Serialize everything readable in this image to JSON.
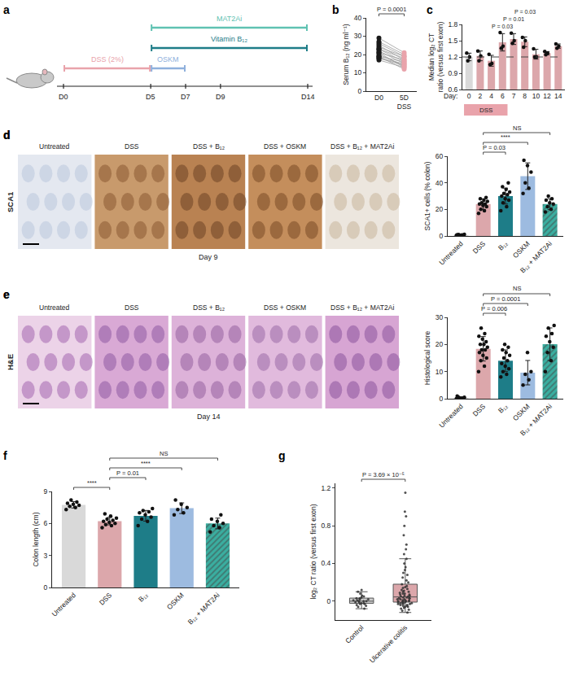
{
  "timeline": {
    "panel": "a",
    "days": [
      {
        "day": 0,
        "label": "D0"
      },
      {
        "day": 5,
        "label": "D5"
      },
      {
        "day": 7,
        "label": "D7"
      },
      {
        "day": 9,
        "label": "D9"
      },
      {
        "day": 14,
        "label": "D14"
      }
    ],
    "treatments": [
      {
        "label": "DSS (2%)",
        "from": 0,
        "to": 5,
        "color": "#e9a3ab"
      },
      {
        "label": "OSKM",
        "from": 5,
        "to": 7,
        "color": "#8fb0dc"
      },
      {
        "label": "Vitamin B₁₂",
        "from": 5,
        "to": 14,
        "color": "#1e7d88"
      },
      {
        "label": "MAT2Ai",
        "from": 5,
        "to": 14,
        "color": "#5fc2b2"
      }
    ]
  },
  "image_panels": [
    {
      "panel": "d",
      "stain": "SCA1",
      "day": "Day 9",
      "columns": [
        "Untreated",
        "DSS",
        "DSS + B₁₂",
        "DSS + OSKM",
        "DSS + B₁₂ + MAT2Ai"
      ]
    },
    {
      "panel": "e",
      "stain": "H&E",
      "day": "Day 14",
      "columns": [
        "Untreated",
        "DSS",
        "DSS + B₁₂",
        "DSS + OSKM",
        "DSS + B₁₂ + MAT2Ai"
      ]
    }
  ],
  "chart_data": [
    {
      "panel": "b",
      "type": "paired",
      "categories": [
        "D0",
        "5D\nDSS"
      ],
      "colors": [
        "#1a1a1a",
        "#e9a3ab"
      ],
      "y_label": "Serum B₁₂ (ng ml⁻¹)",
      "ylim": [
        0,
        40
      ],
      "yticks": [
        0,
        10,
        20,
        30,
        40
      ],
      "pairs": [
        [
          29,
          21
        ],
        [
          27,
          20
        ],
        [
          26,
          19
        ],
        [
          25,
          17
        ],
        [
          24,
          19
        ],
        [
          23,
          16
        ],
        [
          23,
          18
        ],
        [
          22,
          15
        ],
        [
          21,
          13
        ],
        [
          21,
          17
        ],
        [
          20,
          14
        ],
        [
          19,
          16
        ],
        [
          19,
          12
        ],
        [
          18,
          15
        ],
        [
          18,
          14
        ],
        [
          17,
          13
        ]
      ],
      "comparisons": [
        {
          "from": "D0",
          "to": "5D\nDSS",
          "label": "P = 0.0001"
        }
      ]
    },
    {
      "panel": "c",
      "type": "bar",
      "categories": [
        "0",
        "2",
        "4",
        "6",
        "7",
        "8",
        "10",
        "12",
        "14"
      ],
      "x_label": "Day:",
      "y_label": "Median log₂ CT\nratio (versus first exon)",
      "values": [
        1.2,
        1.22,
        1.13,
        1.47,
        1.53,
        1.48,
        1.25,
        1.27,
        1.4
      ],
      "errors": [
        0.07,
        0.09,
        0.1,
        0.16,
        0.1,
        0.09,
        0.09,
        0.03,
        0.04
      ],
      "points": [
        [
          1.27,
          1.2,
          1.13
        ],
        [
          1.31,
          1.22,
          1.13
        ],
        [
          1.25,
          1.08,
          1.06
        ],
        [
          1.65,
          1.4,
          1.36
        ],
        [
          1.64,
          1.5,
          1.45
        ],
        [
          1.56,
          1.5,
          1.38
        ],
        [
          1.35,
          1.2,
          1.2
        ],
        [
          1.3,
          1.27,
          1.24
        ],
        [
          1.44,
          1.4,
          1.36
        ]
      ],
      "colors": [
        "#d9d9d9",
        "#dca7ab",
        "#dca7ab",
        "#dca7ab",
        "#dca7ab",
        "#dca7ab",
        "#dca7ab",
        "#dca7ab",
        "#dca7ab"
      ],
      "ylim": [
        0.6,
        1.8
      ],
      "yticks": [
        0.6,
        0.9,
        1.2,
        1.5,
        1.8
      ],
      "reference_line": 1.2,
      "period": {
        "label": "DSS",
        "from": "0",
        "to": "6",
        "color": "#e9a3ab"
      },
      "bar_labels": [
        {
          "category": "6",
          "label": "P = 0.03"
        },
        {
          "category": "7",
          "label": "P = 0.01"
        },
        {
          "category": "8",
          "label": "P = 0.03"
        }
      ]
    },
    {
      "panel": "d",
      "type": "bar",
      "categories": [
        "Untreated",
        "DSS",
        "B₁₂",
        "OSKM",
        "B₁₂ + MAT2Ai"
      ],
      "y_label": "SCA1+ cells (% colon)",
      "values": [
        0.8,
        24,
        30,
        45,
        24
      ],
      "errors": [
        0.3,
        4,
        6,
        10,
        4
      ],
      "points": [
        [
          0.5,
          0.8,
          1.0,
          1.2,
          0.6,
          0.9
        ],
        [
          17,
          19,
          20,
          22,
          23,
          24,
          24,
          25,
          26,
          27,
          28,
          29
        ],
        [
          19,
          22,
          25,
          27,
          28,
          30,
          31,
          32,
          33,
          35,
          37,
          40
        ],
        [
          32,
          36,
          40,
          48,
          53,
          57
        ],
        [
          18,
          20,
          22,
          24,
          25,
          27,
          28,
          30
        ]
      ],
      "colors": [
        "#d9d9d9",
        "#dca7ab",
        "#1e7d88",
        "#9dbbe0",
        "#3aaea0"
      ],
      "ylim": [
        0,
        60
      ],
      "yticks": [
        0,
        20,
        40,
        60
      ],
      "comparisons": [
        {
          "from": "DSS",
          "to": "B₁₂",
          "label": "P = 0.03"
        },
        {
          "from": "DSS",
          "to": "OSKM",
          "label": "****"
        },
        {
          "from": "DSS",
          "to": "B₁₂ + MAT2Ai",
          "label": "NS"
        }
      ]
    },
    {
      "panel": "e",
      "type": "bar",
      "categories": [
        "Untreated",
        "DSS",
        "B₁₂",
        "OSKM",
        "B₁₂ + MAT2Ai"
      ],
      "y_label": "Histological score",
      "values": [
        0.33,
        18.4,
        14,
        9.6,
        20.1
      ],
      "errors": [
        0.4,
        4.5,
        4,
        4.5,
        6
      ],
      "points": [
        [
          0,
          0,
          0.5,
          0.5,
          0,
          1
        ],
        [
          10,
          12,
          14,
          15,
          16,
          17,
          18,
          18,
          19,
          20,
          20,
          21,
          22,
          23,
          24,
          26
        ],
        [
          8,
          9,
          10,
          11,
          12,
          13,
          14,
          15,
          16,
          17,
          18,
          19,
          20
        ],
        [
          5,
          7,
          9,
          10,
          17
        ],
        [
          10,
          14,
          17,
          19,
          21,
          23,
          24,
          26,
          27
        ]
      ],
      "colors": [
        "#d9d9d9",
        "#dca7ab",
        "#1e7d88",
        "#9dbbe0",
        "#3aaea0"
      ],
      "ylim": [
        0,
        30
      ],
      "yticks": [
        0,
        10,
        20,
        30
      ],
      "comparisons": [
        {
          "from": "DSS",
          "to": "B₁₂",
          "label": "P = 0.006"
        },
        {
          "from": "DSS",
          "to": "OSKM",
          "label": "P = 0.0001"
        },
        {
          "from": "DSS",
          "to": "B₁₂ + MAT2Ai",
          "label": "NS"
        }
      ]
    },
    {
      "panel": "f",
      "type": "bar",
      "categories": [
        "Untreated",
        "DSS",
        "B₁₂",
        "OSKM",
        "B₁₂ + MAT2Ai"
      ],
      "y_label": "Colon length (cm)",
      "values": [
        7.75,
        6.22,
        6.72,
        7.43,
        6.0
      ],
      "errors": [
        0.3,
        0.35,
        0.5,
        0.5,
        0.5
      ],
      "points": [
        [
          7.3,
          7.5,
          7.6,
          7.7,
          7.8,
          7.9,
          8.0,
          8.2
        ],
        [
          5.6,
          5.8,
          5.9,
          6.0,
          6.1,
          6.2,
          6.3,
          6.4,
          6.5,
          6.7,
          6.9
        ],
        [
          5.8,
          6.2,
          6.4,
          6.6,
          6.8,
          7.0,
          7.1,
          7.2,
          7.4
        ],
        [
          6.8,
          7.0,
          7.3,
          7.5,
          7.8,
          8.2
        ],
        [
          5.2,
          5.6,
          5.8,
          6.0,
          6.2,
          6.4,
          6.8
        ]
      ],
      "colors": [
        "#d9d9d9",
        "#dca7ab",
        "#1e7d88",
        "#9dbbe0",
        "#3aaea0"
      ],
      "ylim": [
        0,
        9
      ],
      "yticks": [
        0,
        3,
        6,
        9
      ],
      "comparisons": [
        {
          "from": "Untreated",
          "to": "DSS",
          "label": "****"
        },
        {
          "from": "DSS",
          "to": "B₁₂",
          "label": "P = 0.01"
        },
        {
          "from": "DSS",
          "to": "OSKM",
          "label": "****"
        },
        {
          "from": "DSS",
          "to": "B₁₂ + MAT2Ai",
          "label": "NS"
        }
      ]
    },
    {
      "panel": "g",
      "type": "box",
      "y_label": "log₂ CT ratio (versus first exon)",
      "ylim": [
        -0.2,
        1.25
      ],
      "yticks": [
        0,
        0.4,
        0.8,
        1.2
      ],
      "groups": [
        {
          "name": "Control",
          "color": "#cfcfcf",
          "values": [
            -0.08,
            -0.06,
            -0.05,
            -0.04,
            -0.03,
            -0.03,
            -0.02,
            -0.02,
            -0.01,
            -0.01,
            0,
            0,
            0,
            0.01,
            0.01,
            0.02,
            0.02,
            0.03,
            0.03,
            0.04,
            0.05,
            0.06,
            0.08,
            0.1,
            0.12
          ]
        },
        {
          "name": "Ulcerative colitis",
          "color": "#dca7ab",
          "values": [
            -0.12,
            -0.1,
            -0.09,
            -0.08,
            -0.07,
            -0.06,
            -0.06,
            -0.05,
            -0.05,
            -0.04,
            -0.04,
            -0.03,
            -0.03,
            -0.03,
            -0.02,
            -0.02,
            -0.02,
            -0.01,
            -0.01,
            -0.01,
            0,
            0,
            0,
            0,
            0.01,
            0.01,
            0.01,
            0.02,
            0.02,
            0.02,
            0.03,
            0.03,
            0.03,
            0.04,
            0.04,
            0.05,
            0.05,
            0.06,
            0.06,
            0.07,
            0.07,
            0.08,
            0.08,
            0.09,
            0.1,
            0.1,
            0.11,
            0.12,
            0.13,
            0.14,
            0.15,
            0.16,
            0.18,
            0.2,
            0.22,
            0.25,
            0.28,
            0.3,
            0.33,
            0.36,
            0.4,
            0.45,
            0.5,
            0.55,
            0.6,
            0.7,
            0.8,
            0.9,
            0.95,
            1.15
          ]
        }
      ],
      "comparisons": [
        {
          "from": "Control",
          "to": "Ulcerative colitis",
          "label": "P = 3.69 × 10⁻⁵"
        }
      ]
    }
  ]
}
